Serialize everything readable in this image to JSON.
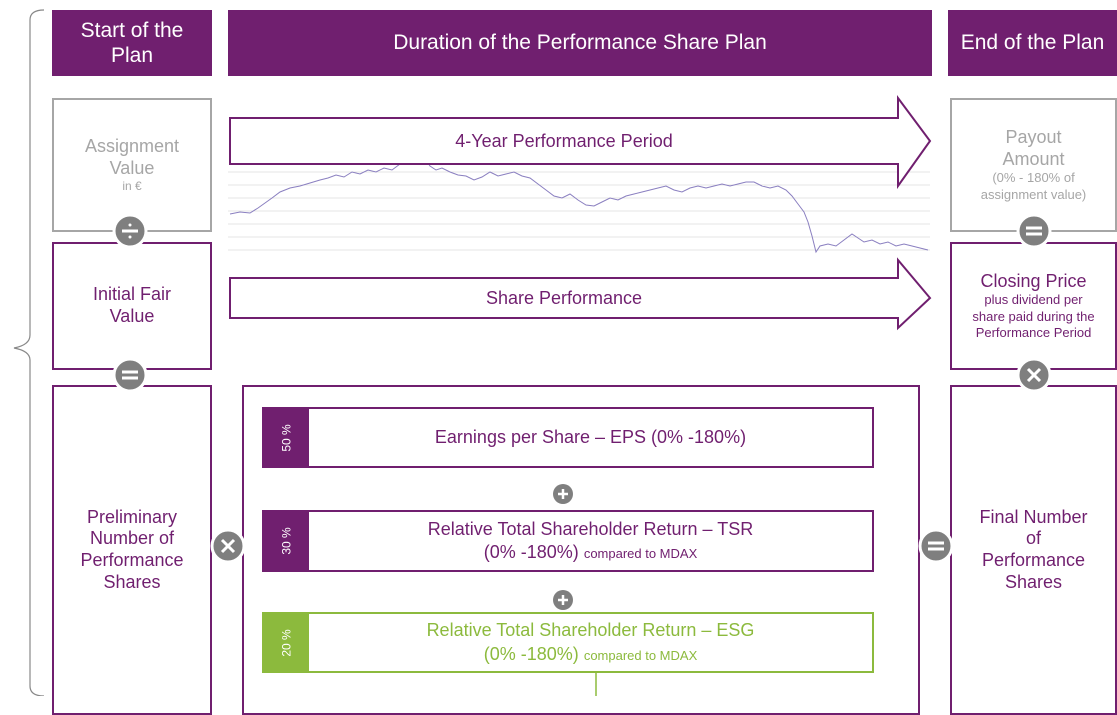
{
  "header": {
    "start": "Start of the Plan",
    "duration": "Duration of the Performance Share Plan",
    "end": "End of the Plan"
  },
  "left": {
    "assignment": {
      "title": "Assignment Value",
      "note": "in €"
    },
    "fair_value": {
      "title": "Initial Fair Value"
    },
    "preliminary": {
      "title": "Preliminary Number of Performance Shares"
    }
  },
  "arrows": {
    "period": "4-Year Performance Period",
    "performance": "Share Performance"
  },
  "right": {
    "payout": {
      "title": "Payout Amount",
      "note": "(0% - 180% of assignment value)"
    },
    "closing": {
      "title": "Closing Price",
      "note": "plus dividend per share paid during the Performance Period"
    },
    "final": {
      "title": "Final Number of Performance Shares"
    }
  },
  "kpis": [
    {
      "weight": "50 %",
      "title": "Earnings per Share – EPS (0% -180%)"
    },
    {
      "weight": "30 %",
      "title": "Relative Total Shareholder Return – TSR",
      "range": "(0% -180%)",
      "note": "compared to MDAX"
    },
    {
      "weight": "20 %",
      "title": "Relative Total Shareholder Return – ESG",
      "range": "(0% -180%)",
      "note": "compared to MDAX"
    }
  ]
}
